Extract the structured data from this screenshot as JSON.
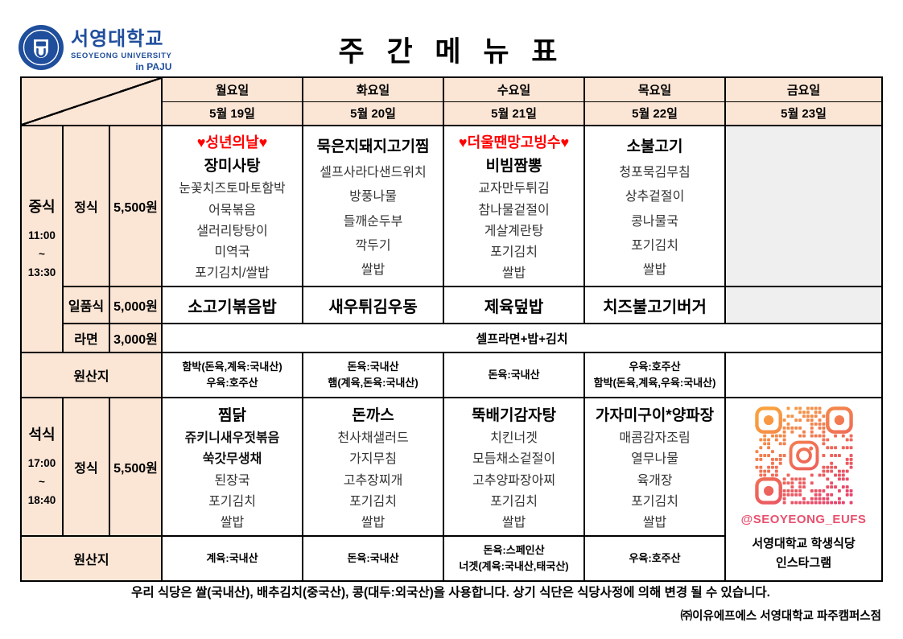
{
  "logo": {
    "university_ko": "서영대학교",
    "university_en": "SEOYEONG UNIVERSITY",
    "campus": "in PAJU"
  },
  "title": "주 간 메 뉴 표",
  "days": [
    {
      "name": "월요일",
      "date": "5월 19일"
    },
    {
      "name": "화요일",
      "date": "5월 20일"
    },
    {
      "name": "수요일",
      "date": "5월 21일"
    },
    {
      "name": "목요일",
      "date": "5월 22일"
    },
    {
      "name": "금요일",
      "date": "5월 23일"
    }
  ],
  "lunch": {
    "label": "중식",
    "time_start": "11:00",
    "tilde": "~",
    "time_end": "13:30",
    "jeongsik": {
      "label": "정식",
      "price": "5,500원",
      "mon": {
        "special": "♥성년의날♥",
        "title": "장미사탕",
        "items": [
          "눈꽃치즈토마토함박",
          "어묵볶음",
          "샐러리탕탕이",
          "미역국",
          "포기김치/쌀밥"
        ]
      },
      "tue": {
        "title": "묵은지돼지고기찜",
        "items": [
          "셀프사라다샌드위치",
          "방풍나물",
          "들깨순두부",
          "깍두기",
          "쌀밥"
        ]
      },
      "wed": {
        "special": "♥더울땐망고빙수♥",
        "title": "비빔짬뽕",
        "items": [
          "교자만두튀김",
          "참나물겉절이",
          "게살계란탕",
          "포기김치",
          "쌀밥"
        ]
      },
      "thu": {
        "title": "소불고기",
        "items": [
          "청포묵김무침",
          "상추겉절이",
          "콩나물국",
          "포기김치",
          "쌀밥"
        ]
      }
    },
    "ilpumsik": {
      "label": "일품식",
      "price": "5,000원",
      "mon": "소고기볶음밥",
      "tue": "새우튀김우동",
      "wed": "제육덮밥",
      "thu": "치즈불고기버거"
    },
    "ramen": {
      "label": "라면",
      "price": "3,000원",
      "content": "셀프라면+밥+김치"
    },
    "origin": {
      "label": "원산지",
      "mon": [
        "함박(돈육,계육:국내산)",
        "우육:호주산"
      ],
      "tue": [
        "돈육:국내산",
        "햄(계육,돈육:국내산)"
      ],
      "wed": [
        "돈육:국내산"
      ],
      "thu": [
        "우육:호주산",
        "함박(돈육,계육,우육:국내산)"
      ]
    }
  },
  "dinner": {
    "label": "석식",
    "time_start": "17:00",
    "tilde": "~",
    "time_end": "18:40",
    "jeongsik": {
      "label": "정식",
      "price": "5,500원",
      "mon": {
        "title": "찜닭",
        "bold_items": [
          "쥬키니새우젓볶음",
          "쑥갓무생채"
        ],
        "items": [
          "된장국",
          "포기김치",
          "쌀밥"
        ]
      },
      "tue": {
        "title": "돈까스",
        "items": [
          "천사채샐러드",
          "가지무침",
          "고추장찌개",
          "포기김치",
          "쌀밥"
        ]
      },
      "wed": {
        "title": "뚝배기감자탕",
        "items": [
          "치킨너겟",
          "모듬채소겉절이",
          "고추양파장아찌",
          "포기김치",
          "쌀밥"
        ]
      },
      "thu": {
        "title": "가자미구이*양파장",
        "items": [
          "매콤감자조림",
          "열무나물",
          "육개장",
          "포기김치",
          "쌀밥"
        ]
      }
    },
    "origin": {
      "label": "원산지",
      "mon": [
        "계육:국내산"
      ],
      "tue": [
        "돈육:국내산"
      ],
      "wed": [
        "돈육:스페인산",
        "너겟(계육:국내산,태국산)"
      ],
      "thu": [
        "우육:호주산"
      ]
    }
  },
  "instagram": {
    "handle": "@SEOYEONG_EUFS",
    "caption_line1": "서영대학교 학생식당",
    "caption_line2": "인스타그램"
  },
  "footer": {
    "notice": "우리 식당은 쌀(국내산), 배추김치(중국산), 콩(대두:외국산)을 사용합니다. 상기 식단은 식당사정에 의해 변경 될 수 있습니다.",
    "company": "㈜이유에프에스 서영대학교 파주캠퍼스점"
  },
  "colors": {
    "header_peach": "#FBE5D5",
    "empty_grey": "#EFEFEF",
    "event_red": "#FF0000",
    "logo_blue": "#1F4E9C",
    "instagram_pink": "#E8506E",
    "qr_gradient_start": "#F9A13E",
    "qr_gradient_end": "#E7446C"
  }
}
